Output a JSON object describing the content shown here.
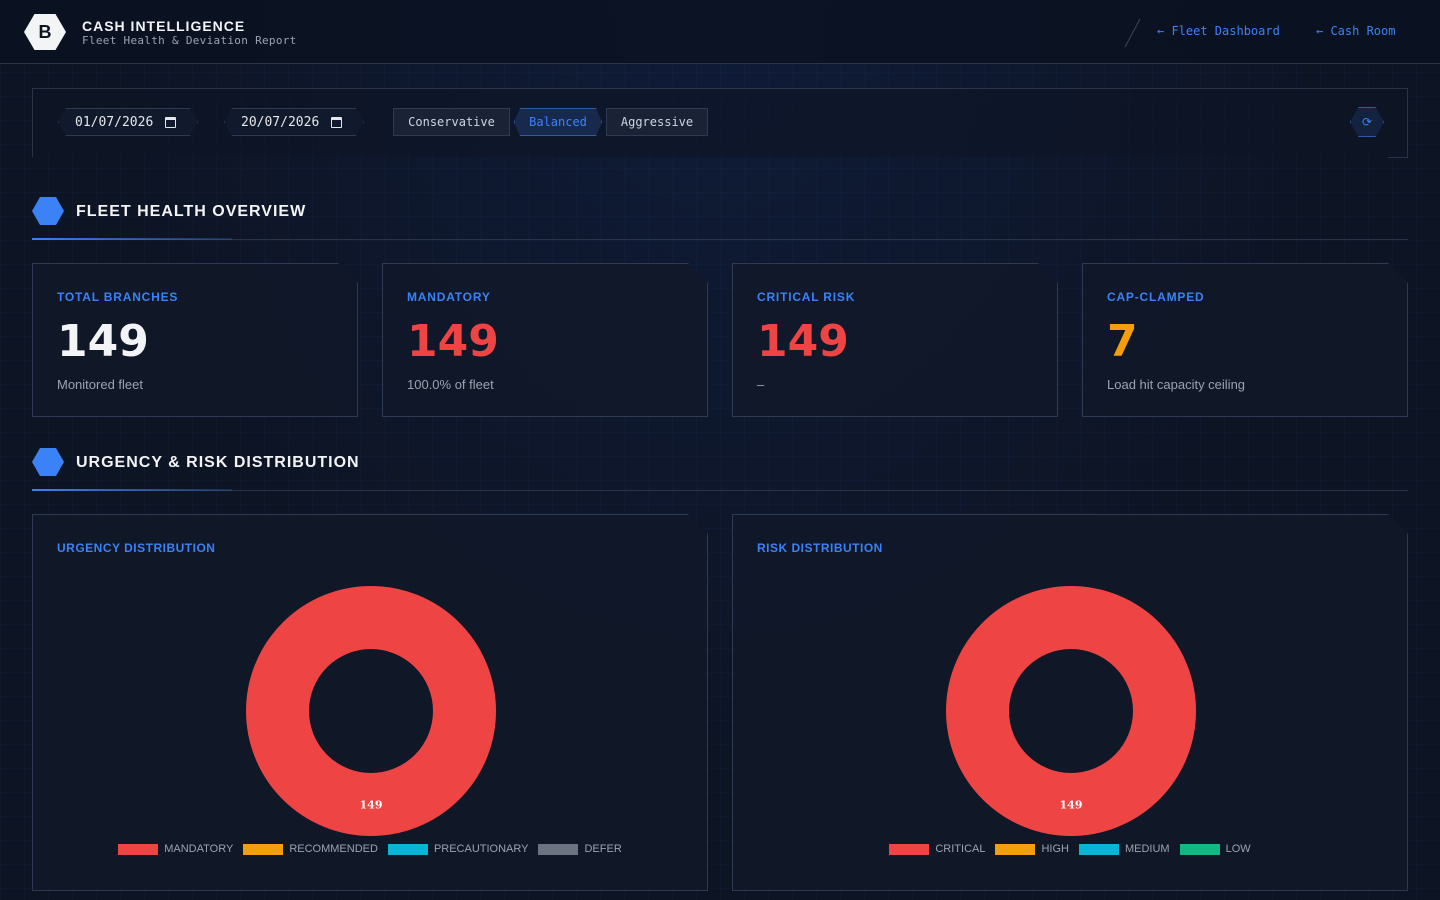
{
  "header": {
    "logo_letter": "B",
    "title": "CASH INTELLIGENCE",
    "subtitle": "Fleet Health & Deviation Report",
    "links": [
      {
        "label": "← Fleet Dashboard"
      },
      {
        "label": "← Cash Room"
      }
    ]
  },
  "filters": {
    "start_date": "01/07/2026",
    "end_date": "20/07/2026",
    "modes": [
      "Conservative",
      "Balanced",
      "Aggressive"
    ],
    "active_mode": "Balanced",
    "refresh_icon": "⟳"
  },
  "sections": {
    "fleet_health": "FLEET HEALTH OVERVIEW",
    "distribution": "URGENCY & RISK DISTRIBUTION"
  },
  "kpis": [
    {
      "label": "TOTAL BRANCHES",
      "value": "149",
      "sub": "Monitored fleet",
      "color": "#f3f4f6"
    },
    {
      "label": "MANDATORY",
      "value": "149",
      "sub": "100.0% of fleet",
      "color": "#ef4444"
    },
    {
      "label": "CRITICAL RISK",
      "value": "149",
      "sub": "–",
      "color": "#ef4444"
    },
    {
      "label": "CAP-CLAMPED",
      "value": "7",
      "sub": "Load hit capacity ceiling",
      "color": "#f59e0b"
    }
  ],
  "chart_data": [
    {
      "type": "pie",
      "title": "URGENCY DISTRIBUTION",
      "categories": [
        "MANDATORY",
        "RECOMMENDED",
        "PRECAUTIONARY",
        "DEFER"
      ],
      "values": [
        149,
        0,
        0,
        0
      ],
      "colors": [
        "#ef4444",
        "#f59e0b",
        "#06b6d4",
        "#6b7280"
      ],
      "data_labels": [
        "149"
      ],
      "legend": "bottom",
      "donut": true
    },
    {
      "type": "pie",
      "title": "RISK DISTRIBUTION",
      "categories": [
        "CRITICAL",
        "HIGH",
        "MEDIUM",
        "LOW"
      ],
      "values": [
        149,
        0,
        0,
        0
      ],
      "colors": [
        "#ef4444",
        "#f59e0b",
        "#06b6d4",
        "#10b981"
      ],
      "data_labels": [
        "149"
      ],
      "legend": "bottom",
      "donut": true
    }
  ]
}
